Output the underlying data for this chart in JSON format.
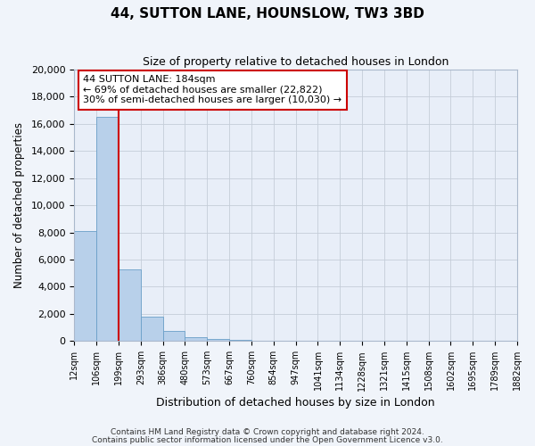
{
  "title": "44, SUTTON LANE, HOUNSLOW, TW3 3BD",
  "subtitle": "Size of property relative to detached houses in London",
  "xlabel": "Distribution of detached houses by size in London",
  "ylabel": "Number of detached properties",
  "bar_values": [
    8100,
    16500,
    5300,
    1800,
    750,
    280,
    160,
    100,
    0,
    0,
    0,
    0,
    0,
    0,
    0,
    0,
    0,
    0,
    0
  ],
  "bin_labels": [
    "12sqm",
    "106sqm",
    "199sqm",
    "293sqm",
    "386sqm",
    "480sqm",
    "573sqm",
    "667sqm",
    "760sqm",
    "854sqm",
    "947sqm",
    "1041sqm",
    "1134sqm",
    "1228sqm",
    "1321sqm",
    "1415sqm",
    "1508sqm",
    "1602sqm",
    "1695sqm",
    "1789sqm",
    "1882sqm"
  ],
  "bar_color": "#b8d0ea",
  "bar_edge_color": "#6a9fc8",
  "fig_bg_color": "#f0f4fa",
  "plot_bg_color": "#e8eef8",
  "grid_color": "#c5cdd8",
  "red_line_x": 2,
  "annotation_title": "44 SUTTON LANE: 184sqm",
  "annotation_line1": "← 69% of detached houses are smaller (22,822)",
  "annotation_line2": "30% of semi-detached houses are larger (10,030) →",
  "annotation_box_facecolor": "#ffffff",
  "annotation_border_color": "#cc0000",
  "ylim": [
    0,
    20000
  ],
  "yticks": [
    0,
    2000,
    4000,
    6000,
    8000,
    10000,
    12000,
    14000,
    16000,
    18000,
    20000
  ],
  "footer1": "Contains HM Land Registry data © Crown copyright and database right 2024.",
  "footer2": "Contains public sector information licensed under the Open Government Licence v3.0."
}
